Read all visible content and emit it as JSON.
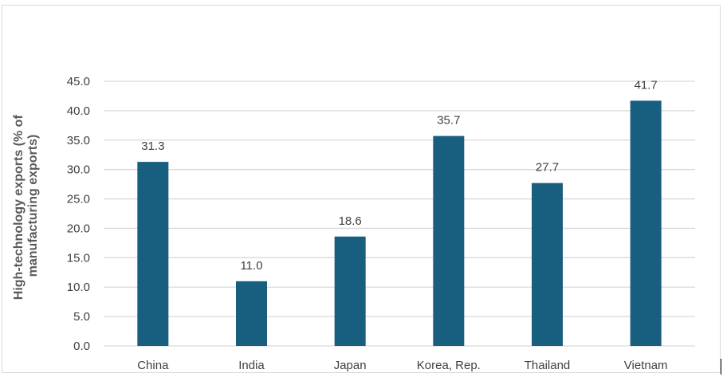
{
  "chart_data": {
    "type": "bar",
    "categories": [
      "China",
      "India",
      "Japan",
      "Korea, Rep.",
      "Thailand",
      "Vietnam"
    ],
    "values": [
      31.3,
      11.0,
      18.6,
      35.7,
      27.7,
      41.7
    ],
    "value_labels": [
      "31.3",
      "11.0",
      "18.6",
      "35.7",
      "27.7",
      "41.7"
    ],
    "ylabel_lines": [
      "High-technology exports (% of",
      "manufacturing exports)"
    ],
    "ylim": [
      0,
      45
    ],
    "yticks": [
      "0.0",
      "5.0",
      "10.0",
      "15.0",
      "20.0",
      "25.0",
      "30.0",
      "35.0",
      "40.0",
      "45.0"
    ],
    "ytick_step": 5,
    "grid": "horizontal",
    "legend": "none",
    "bar_color": "#175e7f",
    "grid_color": "#d9d9d9"
  }
}
